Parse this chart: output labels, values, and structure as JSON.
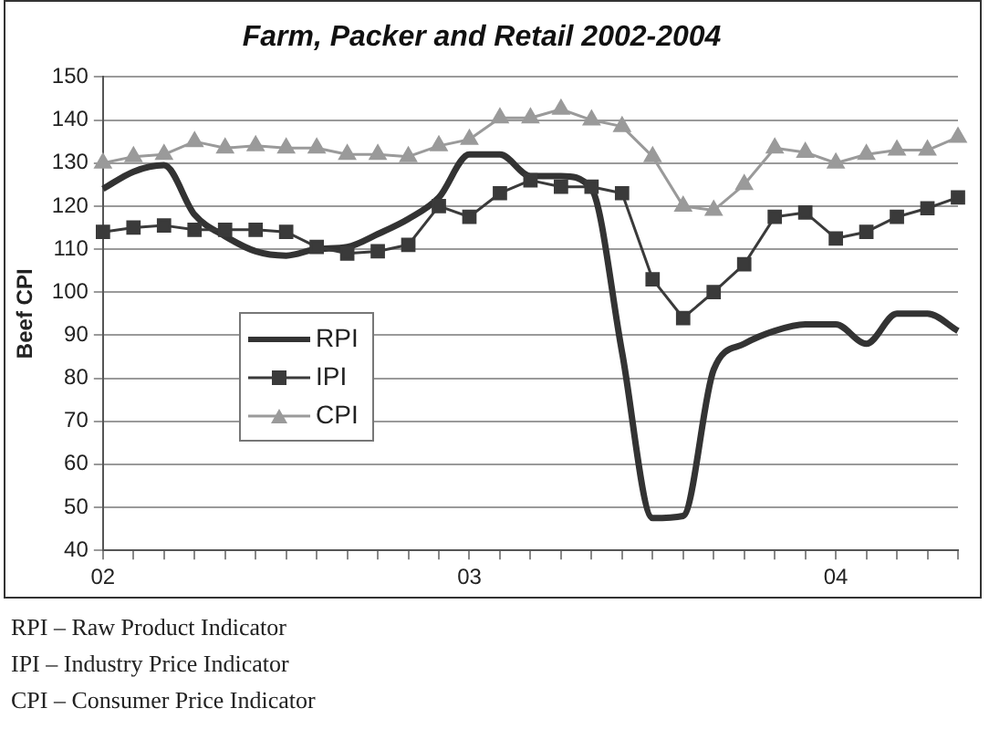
{
  "chart_data": {
    "type": "line",
    "title": "Farm, Packer and Retail 2002-2004",
    "ylabel": "Beef CPI",
    "categories": [
      "02",
      null,
      null,
      null,
      null,
      null,
      null,
      null,
      null,
      null,
      null,
      null,
      "03",
      null,
      null,
      null,
      null,
      null,
      null,
      null,
      null,
      null,
      null,
      null,
      "04",
      null,
      null,
      null,
      null
    ],
    "series": [
      {
        "name": "RPI",
        "color": "#333333",
        "marker": "none",
        "values": [
          124,
          128,
          129.5,
          118,
          113,
          109.5,
          108.5,
          110,
          110.5,
          113.5,
          117,
          122,
          132,
          132,
          127,
          127,
          124,
          86,
          47.5,
          48,
          82,
          88,
          91,
          92.5,
          92.5,
          88,
          95,
          95,
          91
        ]
      },
      {
        "name": "IPI",
        "color": "#3a3a3a",
        "marker": "square",
        "values": [
          114,
          115,
          115.5,
          114.5,
          114.5,
          114.5,
          114,
          110.5,
          109,
          109.5,
          111,
          120,
          117.5,
          123,
          126,
          124.5,
          124.5,
          123,
          103,
          94,
          100,
          106.5,
          117.5,
          118.5,
          112.5,
          114,
          117.5,
          119.5,
          122
        ]
      },
      {
        "name": "CPI",
        "color": "#9a9a9a",
        "marker": "triangle",
        "values": [
          130,
          131.5,
          132,
          135,
          133.5,
          134,
          133.5,
          133.5,
          132,
          132,
          131.5,
          134,
          135.5,
          140.5,
          140.5,
          142.5,
          140,
          138.5,
          131.5,
          120,
          119,
          125,
          133.5,
          132.5,
          130,
          132,
          133,
          133,
          136
        ]
      }
    ],
    "ylim": [
      40,
      150
    ],
    "yticks": [
      40,
      50,
      60,
      70,
      80,
      90,
      100,
      110,
      120,
      130,
      140,
      150
    ],
    "grid": "y",
    "legend": "left",
    "line_style": "solid",
    "annotations": [
      "RPI – Raw Product Indicator",
      "IPI – Industry Price Indicator",
      "CPI – Consumer Price Indicator"
    ]
  }
}
